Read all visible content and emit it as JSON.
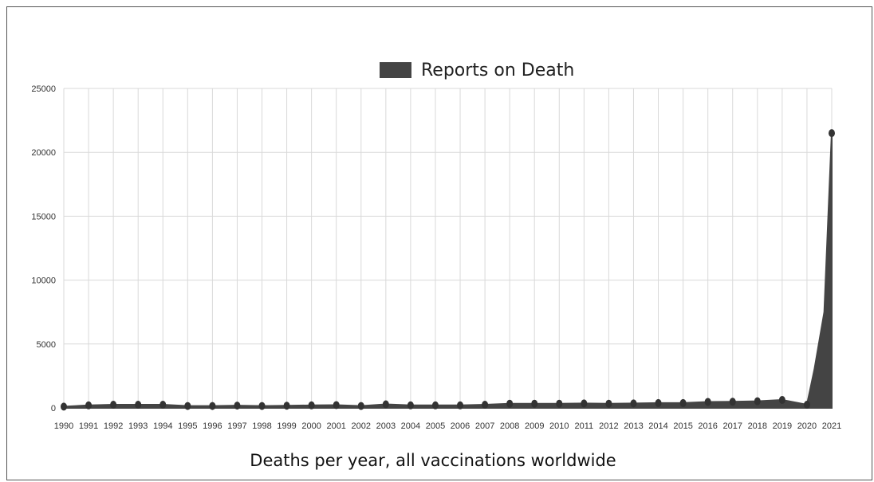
{
  "chart_data": {
    "type": "area",
    "legend": {
      "label": "Reports on Death",
      "placement": "top-center"
    },
    "caption": "Deaths per year, all vaccinations worldwide",
    "grid": true,
    "ylim": [
      0,
      25000
    ],
    "y_ticks": [
      0,
      5000,
      10000,
      15000,
      20000,
      25000
    ],
    "x": [
      "1990",
      "1991",
      "1992",
      "1993",
      "1994",
      "1995",
      "1996",
      "1997",
      "1998",
      "1999",
      "2000",
      "2001",
      "2002",
      "2003",
      "2004",
      "2005",
      "2006",
      "2007",
      "2008",
      "2009",
      "2010",
      "2011",
      "2012",
      "2013",
      "2014",
      "2015",
      "2016",
      "2017",
      "2018",
      "2019",
      "2020",
      "2021"
    ],
    "series": [
      {
        "name": "Reports on Death",
        "color": "#444444",
        "values": [
          100,
          200,
          250,
          250,
          250,
          150,
          150,
          180,
          150,
          170,
          200,
          220,
          150,
          280,
          200,
          200,
          200,
          250,
          330,
          330,
          330,
          350,
          330,
          350,
          380,
          380,
          470,
          480,
          520,
          620,
          250,
          21500
        ]
      }
    ]
  }
}
